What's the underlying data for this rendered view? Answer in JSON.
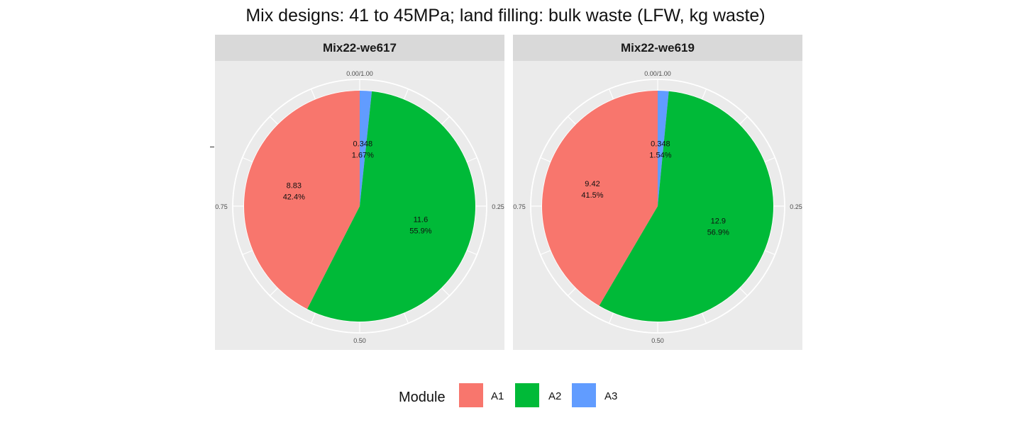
{
  "chart_data": {
    "type": "pie",
    "title": "Mix designs: 41 to 45MPa; land filling: bulk waste (LFW, kg waste)",
    "legend": {
      "title": "Module",
      "position": "bottom",
      "items": [
        {
          "name": "A1",
          "color": "#F8766D"
        },
        {
          "name": "A2",
          "color": "#00BA38"
        },
        {
          "name": "A3",
          "color": "#619CFF"
        }
      ]
    },
    "angular_ticks": [
      "0.00/1.00",
      "0.25",
      "0.50",
      "0.75"
    ],
    "grid": true,
    "panels": [
      {
        "label": "Mix22-we617",
        "slices": [
          {
            "module": "A1",
            "value": 8.83,
            "value_label": "8.83",
            "percent_label": "42.4%"
          },
          {
            "module": "A2",
            "value": 11.6,
            "value_label": "11.6",
            "percent_label": "55.9%"
          },
          {
            "module": "A3",
            "value": 0.348,
            "value_label": "0.348",
            "percent_label": "1.67%"
          }
        ]
      },
      {
        "label": "Mix22-we619",
        "slices": [
          {
            "module": "A1",
            "value": 9.42,
            "value_label": "9.42",
            "percent_label": "41.5%"
          },
          {
            "module": "A2",
            "value": 12.9,
            "value_label": "12.9",
            "percent_label": "56.9%"
          },
          {
            "module": "A3",
            "value": 0.348,
            "value_label": "0.348",
            "percent_label": "1.54%"
          }
        ]
      }
    ]
  }
}
